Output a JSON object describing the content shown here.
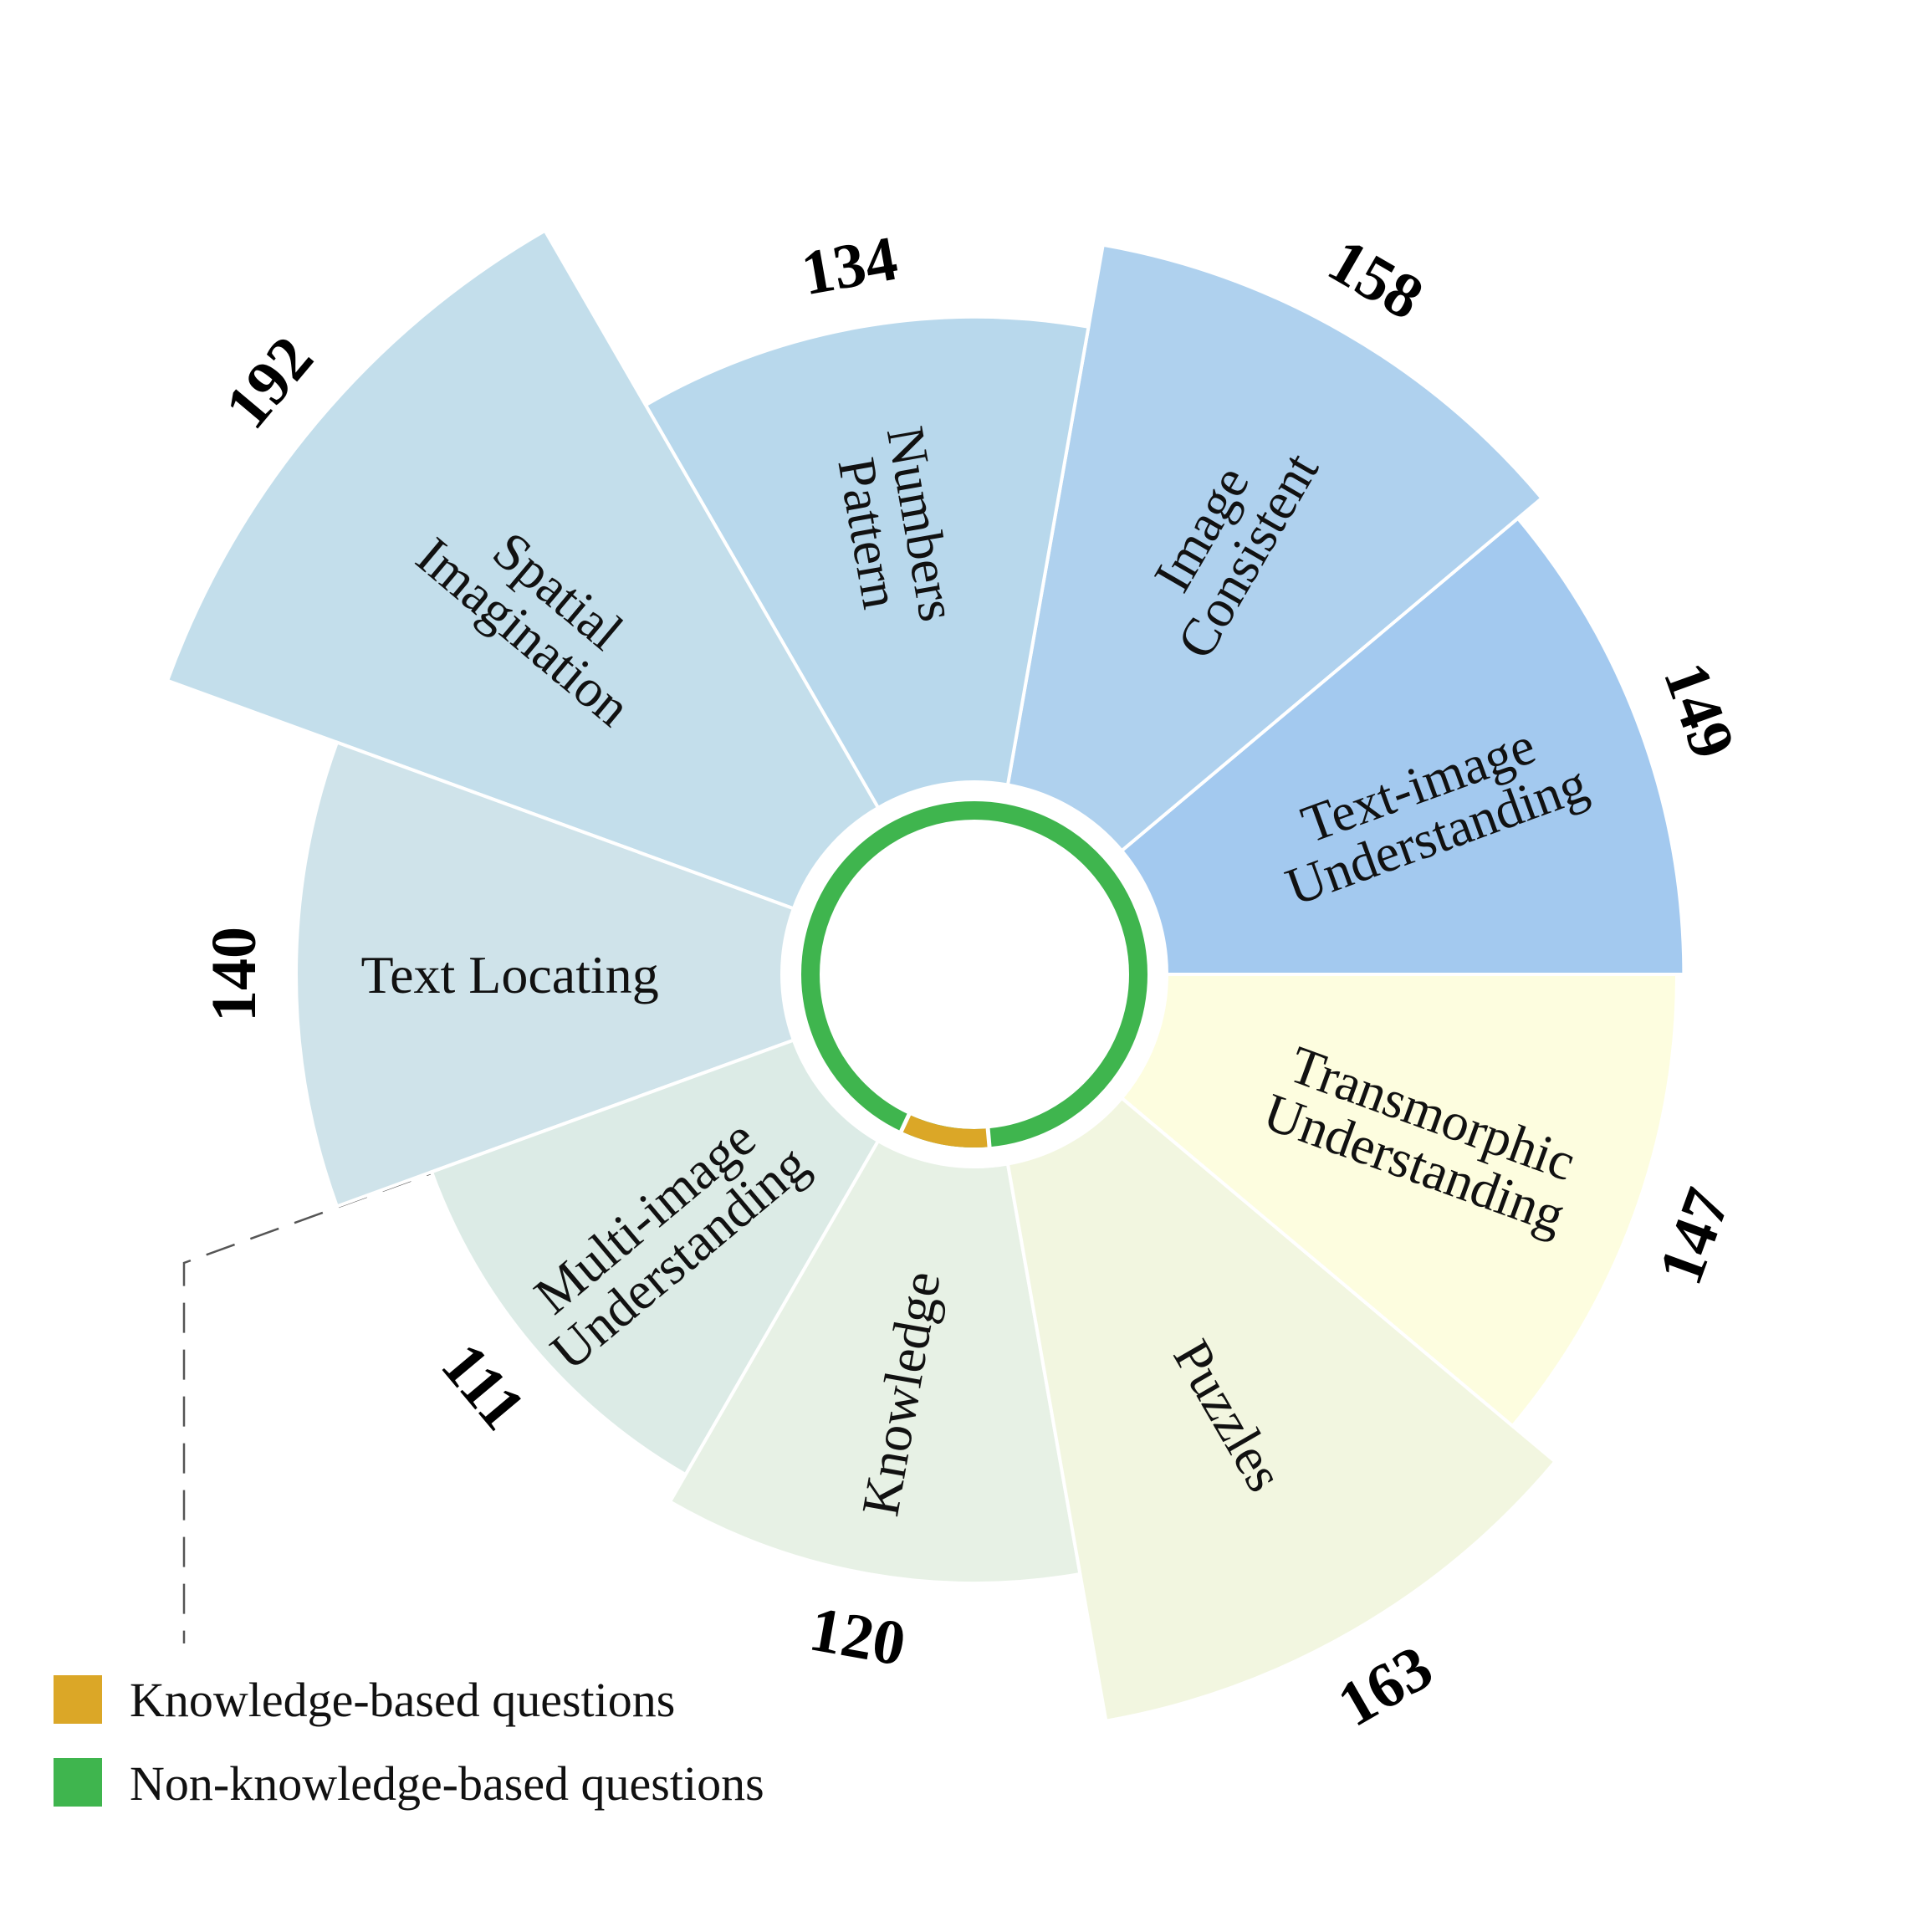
{
  "chart_data": {
    "type": "polar-bar",
    "categories": [
      {
        "lines": [
          "Text-image",
          "Understanding"
        ],
        "value": 149,
        "color": "#a3c9ef"
      },
      {
        "lines": [
          "Image",
          "Consistent"
        ],
        "value": 158,
        "color": "#afd1ee"
      },
      {
        "lines": [
          "Numbers",
          "Pattern"
        ],
        "value": 134,
        "color": "#b8d8ec"
      },
      {
        "lines": [
          "Spatial",
          "Imagination"
        ],
        "value": 192,
        "color": "#c3deeb"
      },
      {
        "lines": [
          "Text Locating"
        ],
        "value": 140,
        "color": "#cfe3ea"
      },
      {
        "lines": [
          "Multi-image",
          "Understanding"
        ],
        "value": 111,
        "color": "#dcebe6"
      },
      {
        "lines": [
          "Knowledge"
        ],
        "value": 120,
        "color": "#e7f1e5"
      },
      {
        "lines": [
          "Puzzles"
        ],
        "value": 163,
        "color": "#f2f6e0"
      },
      {
        "lines": [
          "Transmorphic",
          "Understanding"
        ],
        "value": 147,
        "color": "#fdfddf"
      }
    ],
    "inner_ring": {
      "knowledge_based": {
        "label": "Knowledge-based questions",
        "color": "#dba727"
      },
      "non_knowledge_based": {
        "label": "Non-knowledge-based questions",
        "color": "#3fb54e"
      }
    },
    "legend_position": "bottom-left"
  }
}
